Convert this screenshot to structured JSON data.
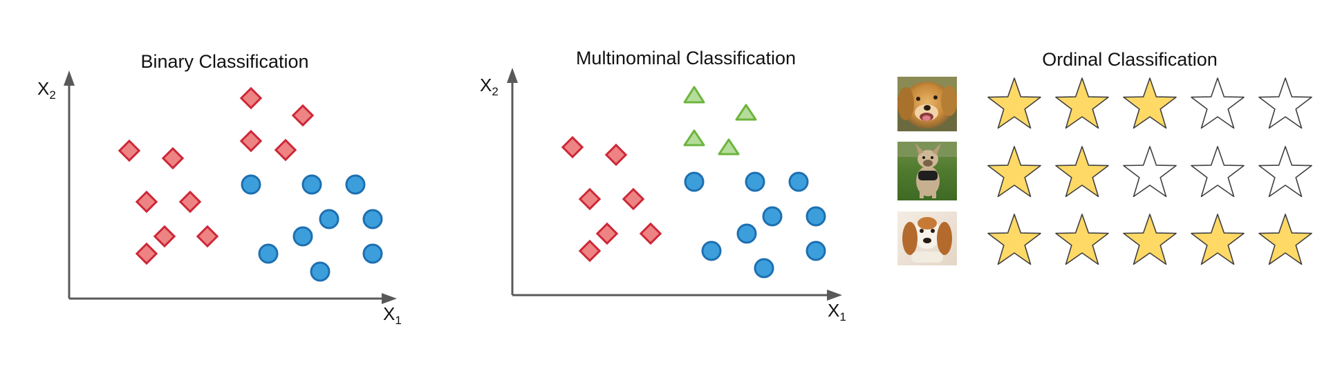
{
  "panels": {
    "binary": {
      "title": "Binary Classification",
      "x_axis": {
        "base": "X",
        "sub": "1"
      },
      "y_axis": {
        "base": "X",
        "sub": "2"
      }
    },
    "multinomial": {
      "title": "Multinominal Classification",
      "x_axis": {
        "base": "X",
        "sub": "1"
      },
      "y_axis": {
        "base": "X",
        "sub": "2"
      }
    },
    "ordinal": {
      "title": "Ordinal Classification",
      "rows": [
        {
          "image": "golden-retriever-photo",
          "rating": 3,
          "max": 5
        },
        {
          "image": "french-bulldog-photo",
          "rating": 2,
          "max": 5
        },
        {
          "image": "beagle-puppy-photo",
          "rating": 5,
          "max": 5
        }
      ]
    }
  },
  "colors": {
    "diamond_fill": "#ee8383",
    "diamond_stroke": "#cc2838",
    "circle_fill": "#3c9fdc",
    "circle_stroke": "#1d6fb0",
    "triangle_fill": "#b4dd9a",
    "triangle_stroke": "#6db43e",
    "axis": "#595959",
    "star_fill": "#ffd966",
    "star_stroke": "#3f3f3f",
    "star_empty": "#ffffff"
  }
}
